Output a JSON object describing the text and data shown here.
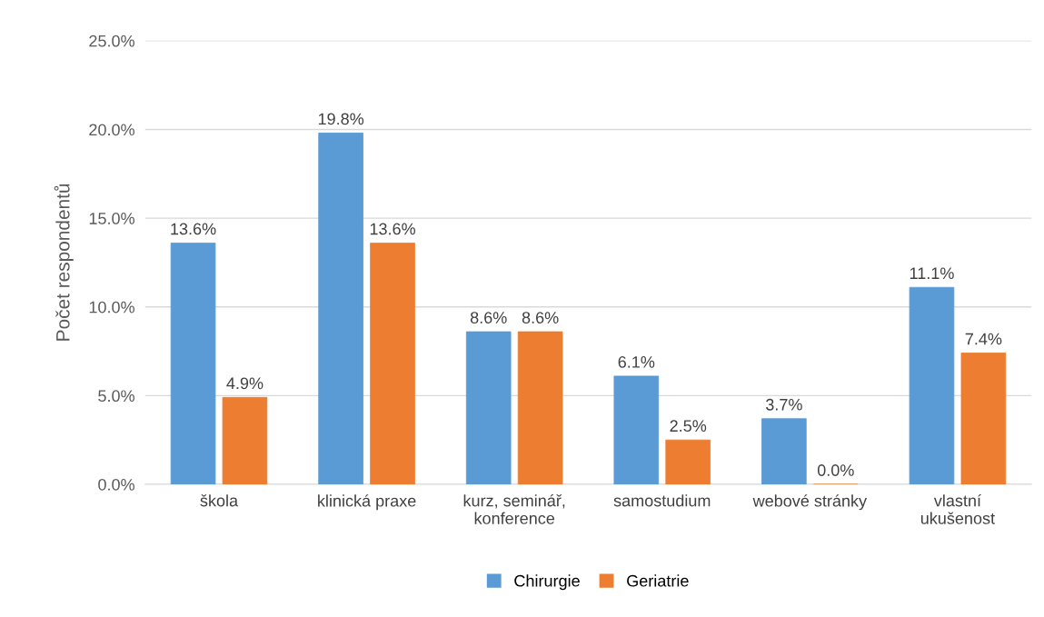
{
  "chart_data": {
    "type": "bar",
    "ylabel": "Počet respondentů",
    "categories": [
      "škola",
      "klinická praxe",
      "kurz, seminář,\nkonference",
      "samostudium",
      "webové stránky",
      "vlastní\nukušenost"
    ],
    "series": [
      {
        "name": "Chirurgie",
        "color": "#5b9bd5",
        "values": [
          13.6,
          19.8,
          8.6,
          6.1,
          3.7,
          11.1
        ],
        "value_labels": [
          "13.6%",
          "19.8%",
          "8.6%",
          "6.1%",
          "3.7%",
          "11.1%"
        ]
      },
      {
        "name": "Geriatrie",
        "color": "#ed7d31",
        "values": [
          4.9,
          13.6,
          8.6,
          2.5,
          0.0,
          7.4
        ],
        "value_labels": [
          "4.9%",
          "13.6%",
          "8.6%",
          "2.5%",
          "0.0%",
          "7.4%"
        ]
      }
    ],
    "ylim": [
      0,
      25
    ],
    "yticks": [
      {
        "value": 0,
        "label": "0.0%"
      },
      {
        "value": 5,
        "label": "5.0%"
      },
      {
        "value": 10,
        "label": "10.0%"
      },
      {
        "value": 15,
        "label": "15.0%"
      },
      {
        "value": 20,
        "label": "20.0%"
      },
      {
        "value": 25,
        "label": "25.0%"
      }
    ],
    "grid": "y",
    "legend": "bottom"
  }
}
